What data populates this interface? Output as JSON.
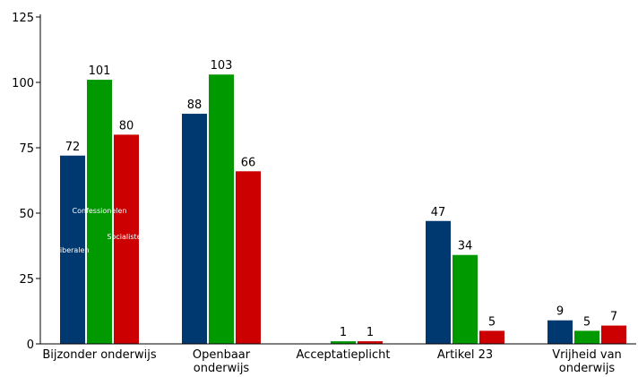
{
  "chart_data": {
    "type": "bar",
    "ylim": [
      0,
      125
    ],
    "yticks": [
      0,
      25,
      50,
      75,
      100,
      125
    ],
    "grid": false,
    "categories": [
      [
        "Bijzonder onderwijs"
      ],
      [
        "Openbaar",
        "onderwijs"
      ],
      [
        "Acceptatieplicht"
      ],
      [
        "Artikel 23"
      ],
      [
        "Vrijheid van",
        "onderwijs"
      ]
    ],
    "series": [
      {
        "name": "Liberalen",
        "color": "#003870",
        "values": [
          72,
          88,
          null,
          47,
          9
        ]
      },
      {
        "name": "Confessionelen",
        "color": "#009900",
        "values": [
          101,
          103,
          1,
          34,
          5
        ]
      },
      {
        "name": "Socialisten",
        "color": "#cc0000",
        "values": [
          80,
          66,
          1,
          5,
          7
        ]
      }
    ]
  }
}
